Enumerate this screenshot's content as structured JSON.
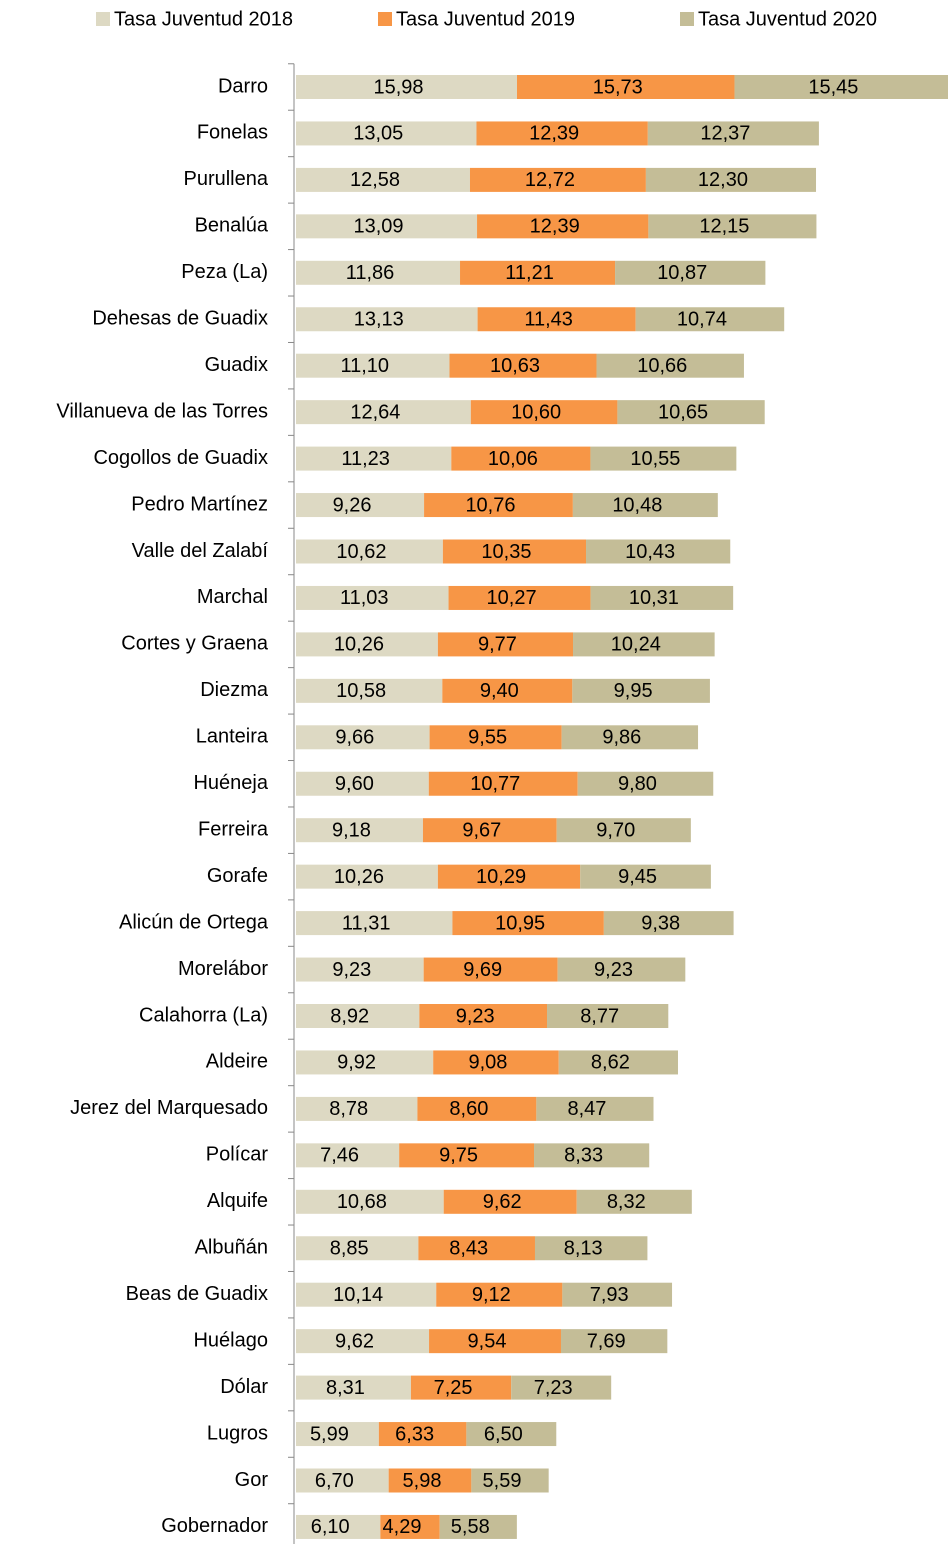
{
  "chart_data": {
    "type": "stacked-bar-horizontal",
    "categories": [
      "Darro",
      "Fonelas",
      "Purullena",
      "Benalúa",
      "Peza (La)",
      "Dehesas de Guadix",
      "Guadix",
      "Villanueva de las Torres",
      "Cogollos de Guadix",
      "Pedro Martínez",
      "Valle del Zalabí",
      "Marchal",
      "Cortes y Graena",
      "Diezma",
      "Lanteira",
      "Huéneja",
      "Ferreira",
      "Gorafe",
      "Alicún de Ortega",
      "Morelábor",
      "Calahorra (La)",
      "Aldeire",
      "Jerez del Marquesado",
      "Polícar",
      "Alquife",
      "Albuñán",
      "Beas de Guadix",
      "Huélago",
      "Dólar",
      "Lugros",
      "Gor",
      "Gobernador"
    ],
    "series": [
      {
        "name": "Tasa Juventud 2018",
        "color": "#ddd9c3",
        "values": [
          15.98,
          13.05,
          12.58,
          13.09,
          11.86,
          13.13,
          11.1,
          12.64,
          11.23,
          9.26,
          10.62,
          11.03,
          10.26,
          10.58,
          9.66,
          9.6,
          9.18,
          10.26,
          11.31,
          9.23,
          8.92,
          9.92,
          8.78,
          7.46,
          10.68,
          8.85,
          10.14,
          9.62,
          8.31,
          5.99,
          6.7,
          6.1
        ],
        "value_labels": [
          "15,98",
          "13,05",
          "12,58",
          "13,09",
          "11,86",
          "13,13",
          "11,10",
          "12,64",
          "11,23",
          "9,26",
          "10,62",
          "11,03",
          "10,26",
          "10,58",
          "9,66",
          "9,60",
          "9,18",
          "10,26",
          "11,31",
          "9,23",
          "8,92",
          "9,92",
          "8,78",
          "7,46",
          "10,68",
          "8,85",
          "10,14",
          "9,62",
          "8,31",
          "5,99",
          "6,70",
          "6,10"
        ]
      },
      {
        "name": "Tasa Juventud 2019",
        "color": "#f79646",
        "values": [
          15.73,
          12.39,
          12.72,
          12.39,
          11.21,
          11.43,
          10.63,
          10.6,
          10.06,
          10.76,
          10.35,
          10.27,
          9.77,
          9.4,
          9.55,
          10.77,
          9.67,
          10.29,
          10.95,
          9.69,
          9.23,
          9.08,
          8.6,
          9.75,
          9.62,
          8.43,
          9.12,
          9.54,
          7.25,
          6.33,
          5.98,
          4.29
        ],
        "value_labels": [
          "15,73",
          "12,39",
          "12,72",
          "12,39",
          "11,21",
          "11,43",
          "10,63",
          "10,60",
          "10,06",
          "10,76",
          "10,35",
          "10,27",
          "9,77",
          "9,40",
          "9,55",
          "10,77",
          "9,67",
          "10,29",
          "10,95",
          "9,69",
          "9,23",
          "9,08",
          "8,60",
          "9,75",
          "9,62",
          "8,43",
          "9,12",
          "9,54",
          "7,25",
          "6,33",
          "5,98",
          "4,29"
        ]
      },
      {
        "name": "Tasa Juventud 2020",
        "color": "#c4bd97",
        "values": [
          15.45,
          12.37,
          12.3,
          12.15,
          10.87,
          10.74,
          10.66,
          10.65,
          10.55,
          10.48,
          10.43,
          10.31,
          10.24,
          9.95,
          9.86,
          9.8,
          9.7,
          9.45,
          9.38,
          9.23,
          8.77,
          8.62,
          8.47,
          8.33,
          8.32,
          8.13,
          7.93,
          7.69,
          7.23,
          6.5,
          5.59,
          5.58
        ],
        "value_labels": [
          "15,45",
          "12,37",
          "12,30",
          "12,15",
          "10,87",
          "10,74",
          "10,66",
          "10,65",
          "10,55",
          "10,48",
          "10,43",
          "10,31",
          "10,24",
          "9,95",
          "9,86",
          "9,80",
          "9,70",
          "9,45",
          "9,38",
          "9,23",
          "8,77",
          "8,62",
          "8,47",
          "8,33",
          "8,32",
          "8,13",
          "7,93",
          "7,69",
          "7,23",
          "6,50",
          "5,59",
          "5,58"
        ]
      }
    ]
  }
}
